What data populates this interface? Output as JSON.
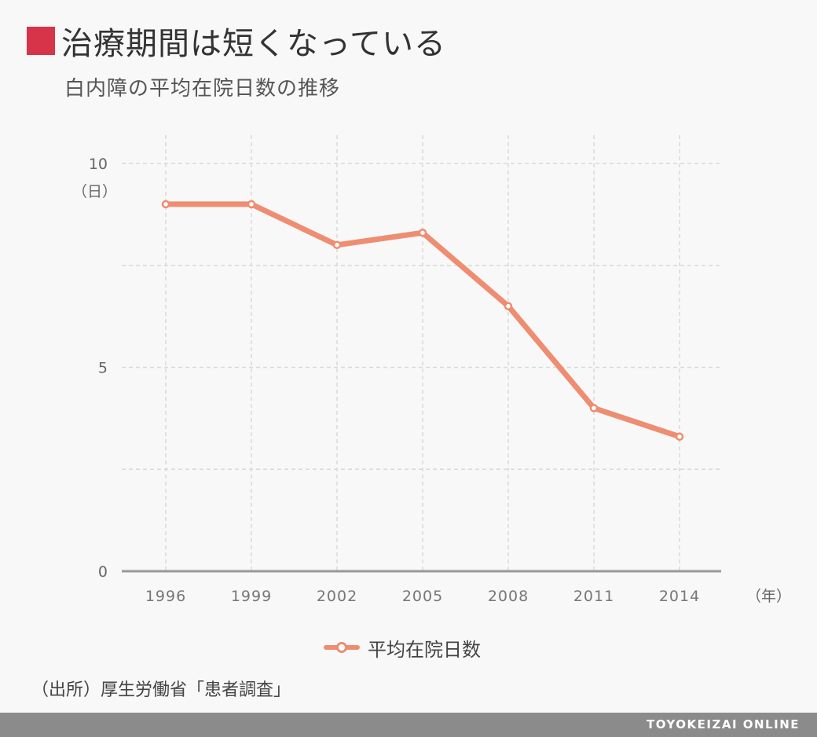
{
  "header": {
    "title": "治療期間は短くなっている",
    "subtitle": "白内障の平均在院日数の推移"
  },
  "source": "（出所）厚生労働省「患者調査」",
  "footer": {
    "brand": "TOYOKEIZAI ONLINE"
  },
  "colors": {
    "accent": "#d7344a",
    "series": "#ee8d71",
    "grid": "#d9d9d9",
    "axis": "#999999",
    "footer": "#8b8b8b"
  },
  "chart_data": {
    "type": "line",
    "title": "白内障の平均在院日数の推移",
    "ylabel": "（日）",
    "xlabel": "（年）",
    "x": [
      "1996",
      "1999",
      "2002",
      "2005",
      "2008",
      "2011",
      "2014"
    ],
    "series": [
      {
        "name": "平均在院日数",
        "values": [
          9.0,
          9.0,
          8.0,
          8.3,
          6.5,
          4.0,
          3.3
        ]
      }
    ],
    "ylim": [
      0,
      10
    ],
    "yticks": [
      "0",
      "5",
      "10"
    ],
    "grid": true,
    "legend": "bottom-center"
  }
}
